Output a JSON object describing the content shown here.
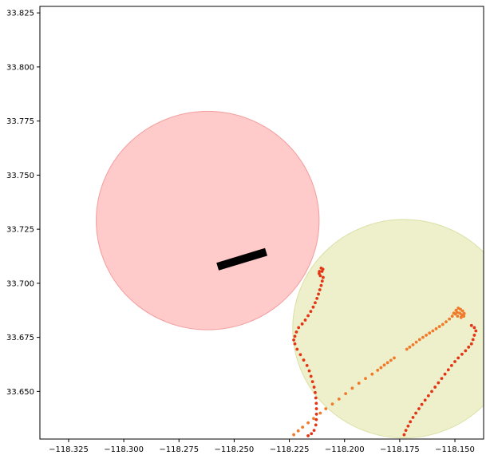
{
  "chart_data": {
    "type": "scatter",
    "title": "",
    "xlabel": "",
    "ylabel": "",
    "xlim": [
      -118.338,
      -118.137
    ],
    "ylim": [
      33.628,
      33.828
    ],
    "xticks": [
      -118.325,
      -118.3,
      -118.275,
      -118.25,
      -118.225,
      -118.2,
      -118.175,
      -118.15
    ],
    "xtick_labels": [
      "−118.325",
      "−118.300",
      "−118.275",
      "−118.250",
      "−118.225",
      "−118.200",
      "−118.175",
      "−118.150"
    ],
    "yticks": [
      33.65,
      33.675,
      33.7,
      33.725,
      33.75,
      33.775,
      33.8,
      33.825
    ],
    "ytick_labels": [
      "33.650",
      "33.675",
      "33.700",
      "33.725",
      "33.750",
      "33.775",
      "33.800",
      "33.825"
    ],
    "grid": false,
    "circles": [
      {
        "cx": -118.262,
        "cy": 33.729,
        "r": 0.0505,
        "fill": "#ff8a8a",
        "opacity": 0.45,
        "stroke": "#f08080"
      },
      {
        "cx": -118.173,
        "cy": 33.679,
        "r": 0.0505,
        "fill": "#dde29a",
        "opacity": 0.5,
        "stroke": "#cfd58a"
      }
    ],
    "segment": {
      "x": [
        -118.2575,
        -118.2355
      ],
      "y": [
        33.7077,
        33.7145
      ],
      "color": "#000000"
    },
    "series": [
      {
        "color": "#e33514",
        "points": [
          [
            -118.2115,
            33.7045
          ],
          [
            -118.2102,
            33.7055
          ],
          [
            -118.2098,
            33.7065
          ],
          [
            -118.2106,
            33.707
          ],
          [
            -118.2114,
            33.7055
          ],
          [
            -118.211,
            33.7035
          ],
          [
            -118.2097,
            33.7027
          ],
          [
            -118.2101,
            33.701
          ],
          [
            -118.2106,
            33.699
          ],
          [
            -118.2112,
            33.697
          ],
          [
            -118.2118,
            33.695
          ],
          [
            -118.2125,
            33.693
          ],
          [
            -118.2133,
            33.691
          ],
          [
            -118.2142,
            33.689
          ],
          [
            -118.2153,
            33.687
          ],
          [
            -118.2165,
            33.685
          ],
          [
            -118.2178,
            33.683
          ],
          [
            -118.2192,
            33.6812
          ],
          [
            -118.2208,
            33.6795
          ],
          [
            -118.2218,
            33.6775
          ],
          [
            -118.2225,
            33.6755
          ],
          [
            -118.223,
            33.6738
          ],
          [
            -118.2225,
            33.672
          ],
          [
            -118.2215,
            33.6695
          ],
          [
            -118.22,
            33.667
          ],
          [
            -118.2185,
            33.6645
          ],
          [
            -118.217,
            33.662
          ],
          [
            -118.216,
            33.6595
          ],
          [
            -118.2152,
            33.657
          ],
          [
            -118.2145,
            33.6545
          ],
          [
            -118.2138,
            33.652
          ],
          [
            -118.2133,
            33.6495
          ],
          [
            -118.213,
            33.647
          ],
          [
            -118.2128,
            33.6445
          ],
          [
            -118.2127,
            33.642
          ],
          [
            -118.2127,
            33.6395
          ],
          [
            -118.2128,
            33.637
          ],
          [
            -118.213,
            33.6345
          ],
          [
            -118.2138,
            33.632
          ],
          [
            -118.215,
            33.6305
          ],
          [
            -118.2165,
            33.6295
          ],
          [
            -118.1425,
            33.6805
          ],
          [
            -118.1412,
            33.6795
          ],
          [
            -118.1405,
            33.678
          ],
          [
            -118.1412,
            33.676
          ],
          [
            -118.1418,
            33.674
          ],
          [
            -118.1425,
            33.672
          ],
          [
            -118.1438,
            33.6705
          ],
          [
            -118.1452,
            33.6688
          ],
          [
            -118.1468,
            33.6672
          ],
          [
            -118.1485,
            33.6655
          ],
          [
            -118.15,
            33.6638
          ],
          [
            -118.1515,
            33.662
          ],
          [
            -118.153,
            33.66
          ],
          [
            -118.1545,
            33.658
          ],
          [
            -118.156,
            33.656
          ],
          [
            -118.1575,
            33.654
          ],
          [
            -118.159,
            33.652
          ],
          [
            -118.1605,
            33.65
          ],
          [
            -118.162,
            33.648
          ],
          [
            -118.1635,
            33.646
          ],
          [
            -118.165,
            33.644
          ],
          [
            -118.1663,
            33.642
          ],
          [
            -118.1677,
            33.64
          ],
          [
            -118.169,
            33.638
          ],
          [
            -118.1702,
            33.636
          ],
          [
            -118.1712,
            33.634
          ],
          [
            -118.1722,
            33.632
          ],
          [
            -118.173,
            33.63
          ]
        ]
      },
      {
        "color": "#f07a2a",
        "points": [
          [
            -118.1495,
            33.6875
          ],
          [
            -118.1485,
            33.6885
          ],
          [
            -118.1475,
            33.688
          ],
          [
            -118.1465,
            33.6872
          ],
          [
            -118.1458,
            33.686
          ],
          [
            -118.146,
            33.6848
          ],
          [
            -118.1472,
            33.6842
          ],
          [
            -118.1488,
            33.6848
          ],
          [
            -118.1498,
            33.6858
          ],
          [
            -118.149,
            33.6866
          ],
          [
            -118.1478,
            33.6862
          ],
          [
            -118.147,
            33.6855
          ],
          [
            -118.1505,
            33.6862
          ],
          [
            -118.1512,
            33.6848
          ],
          [
            -118.1525,
            33.6835
          ],
          [
            -118.154,
            33.6822
          ],
          [
            -118.1555,
            33.681
          ],
          [
            -118.157,
            33.68
          ],
          [
            -118.1585,
            33.679
          ],
          [
            -118.16,
            33.678
          ],
          [
            -118.1615,
            33.677
          ],
          [
            -118.163,
            33.676
          ],
          [
            -118.1645,
            33.675
          ],
          [
            -118.166,
            33.674
          ],
          [
            -118.1675,
            33.6728
          ],
          [
            -118.169,
            33.6716
          ],
          [
            -118.1705,
            33.6705
          ],
          [
            -118.1718,
            33.6695
          ],
          [
            -118.1775,
            33.6655
          ],
          [
            -118.179,
            33.6644
          ],
          [
            -118.1805,
            33.6633
          ],
          [
            -118.182,
            33.6622
          ],
          [
            -118.1835,
            33.661
          ],
          [
            -118.185,
            33.6598
          ],
          [
            -118.1875,
            33.658
          ],
          [
            -118.1905,
            33.656
          ],
          [
            -118.1935,
            33.6538
          ],
          [
            -118.1965,
            33.6515
          ],
          [
            -118.1995,
            33.649
          ],
          [
            -118.2025,
            33.6465
          ],
          [
            -118.2055,
            33.6442
          ],
          [
            -118.2085,
            33.642
          ],
          [
            -118.211,
            33.64
          ],
          [
            -118.214,
            33.6375
          ],
          [
            -118.2165,
            33.6355
          ],
          [
            -118.219,
            33.6335
          ],
          [
            -118.221,
            33.6318
          ],
          [
            -118.223,
            33.63
          ]
        ]
      }
    ]
  }
}
